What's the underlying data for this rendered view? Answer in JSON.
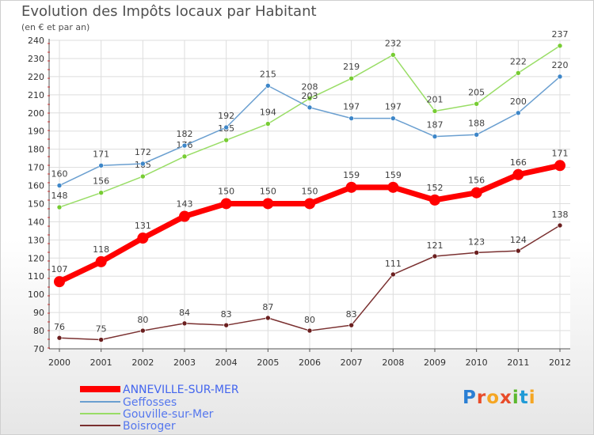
{
  "title": "Evolution des Impôts locaux par Habitant",
  "subtitle": "(en € et par an)",
  "logo": {
    "letters": [
      "P",
      "r",
      "o",
      "x",
      "i",
      "t",
      "i"
    ],
    "colors": [
      "#2a7fd4",
      "#e84c2a",
      "#f5a623",
      "#e84c2a",
      "#5cb82e",
      "#1f9ad6",
      "#f5a623"
    ]
  },
  "chart_data": {
    "type": "line",
    "x": [
      "2000",
      "2001",
      "2002",
      "2003",
      "2004",
      "2005",
      "2006",
      "2007",
      "2008",
      "2009",
      "2010",
      "2011",
      "2012"
    ],
    "ylim": [
      70,
      240
    ],
    "yticks": [
      70,
      80,
      90,
      100,
      110,
      120,
      130,
      140,
      150,
      160,
      170,
      180,
      190,
      200,
      210,
      220,
      230,
      240
    ],
    "grid": true,
    "legend_position": "bottom-left",
    "series": [
      {
        "name": "ANNEVILLE-SUR-MER",
        "color": "#ff0000",
        "width": 7,
        "marker": 7,
        "label_color": "#ff0000",
        "values": [
          107,
          118,
          131,
          143,
          150,
          150,
          150,
          159,
          159,
          152,
          156,
          166,
          171
        ]
      },
      {
        "name": "Geffosses",
        "color": "#6a9fd0",
        "marker_color": "#3d86c8",
        "width": 1.5,
        "marker": 3,
        "label_color": "#4a8fd0",
        "values": [
          160,
          171,
          172,
          182,
          192,
          215,
          203,
          197,
          197,
          187,
          188,
          200,
          220
        ]
      },
      {
        "name": "Gouville-sur-Mer",
        "color": "#99dd66",
        "marker_color": "#77cc33",
        "width": 1.5,
        "marker": 3,
        "label_color": "#66bb22",
        "values": [
          148,
          156,
          165,
          176,
          185,
          194,
          208,
          219,
          232,
          201,
          205,
          222,
          237
        ]
      },
      {
        "name": "Boisroger",
        "color": "#7a3030",
        "marker_color": "#6b1f1f",
        "width": 1.5,
        "marker": 3,
        "label_color": "#7a3030",
        "values": [
          76,
          75,
          80,
          84,
          83,
          87,
          80,
          83,
          111,
          121,
          123,
          124,
          138
        ]
      }
    ]
  }
}
